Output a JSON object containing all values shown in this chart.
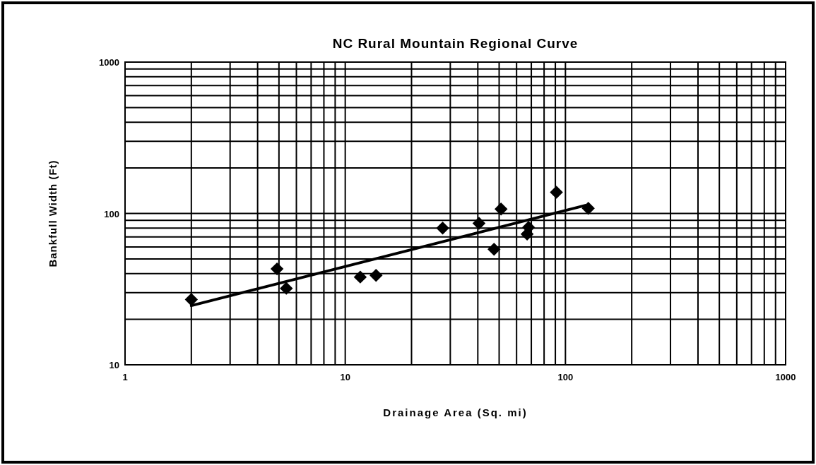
{
  "chart_data": {
    "type": "scatter",
    "title": "NC Rural Mountain Regional Curve",
    "xlabel": "Drainage Area (Sq. mi)",
    "ylabel": "Bankfull Width (Ft)",
    "log": "xy",
    "grid": true,
    "marker": "diamond",
    "xlim": [
      1,
      1000
    ],
    "ylim": [
      10,
      1000
    ],
    "xticks": [
      1,
      {
        "value": 2,
        "label": null
      },
      {
        "value": 3,
        "label": null
      },
      {
        "value": 4,
        "label": null
      },
      {
        "value": 5,
        "label": null
      },
      {
        "value": 6,
        "label": null
      },
      {
        "value": 7,
        "label": null
      },
      {
        "value": 8,
        "label": null
      },
      {
        "value": 9,
        "label": null
      },
      10,
      {
        "value": 20,
        "label": null
      },
      {
        "value": 30,
        "label": null
      },
      {
        "value": 40,
        "label": null
      },
      {
        "value": 50,
        "label": null
      },
      {
        "value": 60,
        "label": null
      },
      {
        "value": 70,
        "label": null
      },
      {
        "value": 80,
        "label": null
      },
      {
        "value": 90,
        "label": null
      },
      100,
      {
        "value": 200,
        "label": null
      },
      {
        "value": 300,
        "label": null
      },
      {
        "value": 400,
        "label": null
      },
      {
        "value": 500,
        "label": null
      },
      {
        "value": 600,
        "label": null
      },
      {
        "value": 700,
        "label": null
      },
      {
        "value": 800,
        "label": null
      },
      {
        "value": 900,
        "label": null
      },
      1000
    ],
    "yticks": [
      10,
      {
        "value": 20,
        "label": null
      },
      {
        "value": 30,
        "label": null
      },
      {
        "value": 40,
        "label": null
      },
      {
        "value": 50,
        "label": null
      },
      {
        "value": 60,
        "label": null
      },
      {
        "value": 70,
        "label": null
      },
      {
        "value": 80,
        "label": null
      },
      {
        "value": 90,
        "label": null
      },
      100,
      {
        "value": 200,
        "label": null
      },
      {
        "value": 300,
        "label": null
      },
      {
        "value": 400,
        "label": null
      },
      {
        "value": 500,
        "label": null
      },
      {
        "value": 600,
        "label": null
      },
      {
        "value": 700,
        "label": null
      },
      {
        "value": 800,
        "label": null
      },
      {
        "value": 900,
        "label": null
      },
      1000
    ],
    "series": [
      {
        "color": "#000000",
        "x": [
          2,
          4.9,
          5.4,
          11.7,
          13.8,
          27.7,
          40.5,
          47.4,
          51,
          67,
          68,
          91,
          127
        ],
        "values": [
          27,
          43,
          32,
          38,
          39,
          80,
          86,
          58,
          107,
          73,
          81,
          138,
          108
        ]
      },
      {
        "type": "line",
        "marker": "none",
        "color": "#000000",
        "x": [
          2,
          123
        ],
        "values": [
          24.6,
          113
        ]
      }
    ]
  }
}
